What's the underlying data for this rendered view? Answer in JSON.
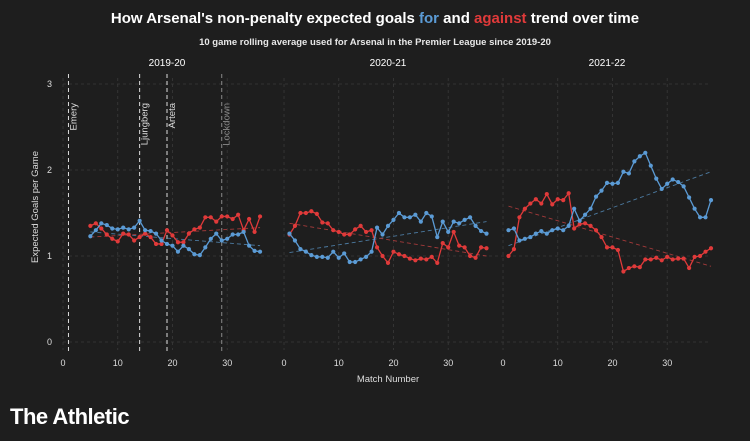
{
  "title": {
    "part1": "How Arsenal's non-penalty expected goals ",
    "for_word": "for",
    "middle": " and ",
    "against_word": "against",
    "part2": " trend over time"
  },
  "subtitle": "10 game rolling average used for Arsenal in the Premier League since 2019-20",
  "brand": "The Athletic",
  "colors": {
    "for": "#5b9bd5",
    "against": "#e03a3a",
    "background": "#1e1e1e",
    "grid": "#3a3a3a"
  },
  "chart_data": {
    "type": "line",
    "ylabel": "Expected Goals per Game",
    "xlabel": "Match Number",
    "ylim": [
      0,
      3
    ],
    "yticks": [
      "0",
      "1",
      "2",
      "3"
    ],
    "xticks": [
      "0",
      "10",
      "20",
      "30"
    ],
    "grid": true,
    "panels": [
      {
        "label": "2019-20",
        "xlim": [
          0,
          38
        ],
        "x_start": 5,
        "series": [
          {
            "name": "for",
            "values": [
              1.23,
              1.3,
              1.38,
              1.36,
              1.32,
              1.31,
              1.33,
              1.31,
              1.33,
              1.41,
              1.3,
              1.29,
              1.26,
              1.18,
              1.14,
              1.12,
              1.05,
              1.12,
              1.08,
              1.02,
              1.01,
              1.1,
              1.2,
              1.26,
              1.18,
              1.2,
              1.25,
              1.25,
              1.28,
              1.12,
              1.06,
              1.05
            ]
          },
          {
            "name": "against",
            "values": [
              1.35,
              1.38,
              1.32,
              1.25,
              1.2,
              1.17,
              1.26,
              1.25,
              1.18,
              1.22,
              1.26,
              1.22,
              1.14,
              1.14,
              1.3,
              1.24,
              1.16,
              1.16,
              1.26,
              1.31,
              1.33,
              1.45,
              1.45,
              1.4,
              1.46,
              1.46,
              1.43,
              1.48,
              1.3,
              1.43,
              1.28,
              1.46
            ]
          }
        ],
        "trend": {
          "for": [
            1.28,
            1.12
          ],
          "against": [
            1.22,
            1.33
          ]
        },
        "annotations": [
          {
            "label": "Emery",
            "x": 1,
            "style": "white"
          },
          {
            "label": "Ljungberg",
            "x": 14,
            "style": "white"
          },
          {
            "label": "Arteta",
            "x": 19,
            "style": "white"
          },
          {
            "label": "Lockdown",
            "x": 29,
            "style": "grey"
          }
        ]
      },
      {
        "label": "2020-21",
        "xlim": [
          0,
          38
        ],
        "x_start": 1,
        "series": [
          {
            "name": "for",
            "values": [
              1.26,
              1.18,
              1.08,
              1.05,
              1.01,
              0.99,
              0.99,
              0.98,
              1.05,
              0.98,
              1.03,
              0.93,
              0.93,
              0.96,
              0.99,
              1.05,
              1.33,
              1.25,
              1.35,
              1.42,
              1.5,
              1.45,
              1.45,
              1.48,
              1.4,
              1.5,
              1.46,
              1.22,
              1.4,
              1.28,
              1.4,
              1.38,
              1.42,
              1.45,
              1.35,
              1.29,
              1.26
            ]
          },
          {
            "name": "against",
            "values": [
              1.25,
              1.35,
              1.5,
              1.5,
              1.52,
              1.49,
              1.39,
              1.38,
              1.3,
              1.28,
              1.25,
              1.25,
              1.31,
              1.35,
              1.28,
              1.3,
              1.1,
              1.0,
              0.92,
              1.05,
              1.02,
              1.0,
              0.97,
              0.95,
              0.97,
              0.96,
              0.99,
              0.92,
              1.15,
              1.1,
              1.28,
              1.12,
              1.1,
              1.0,
              0.98,
              1.1,
              1.09
            ]
          }
        ],
        "trend": {
          "for": [
            1.04,
            1.4
          ],
          "against": [
            1.38,
            1.0
          ]
        }
      },
      {
        "label": "2021-22",
        "xlim": [
          0,
          38
        ],
        "x_start": 1,
        "series": [
          {
            "name": "for",
            "values": [
              1.3,
              1.32,
              1.18,
              1.2,
              1.22,
              1.26,
              1.29,
              1.26,
              1.3,
              1.32,
              1.3,
              1.35,
              1.55,
              1.41,
              1.48,
              1.55,
              1.69,
              1.76,
              1.85,
              1.84,
              1.85,
              1.98,
              1.96,
              2.1,
              2.16,
              2.2,
              2.05,
              1.9,
              1.78,
              1.84,
              1.89,
              1.86,
              1.81,
              1.68,
              1.55,
              1.45,
              1.45,
              1.65
            ]
          },
          {
            "name": "against",
            "values": [
              1.0,
              1.08,
              1.45,
              1.55,
              1.61,
              1.66,
              1.61,
              1.72,
              1.6,
              1.66,
              1.65,
              1.73,
              1.32,
              1.37,
              1.38,
              1.35,
              1.3,
              1.22,
              1.1,
              1.1,
              1.07,
              0.82,
              0.86,
              0.88,
              0.87,
              0.96,
              0.96,
              0.98,
              0.95,
              0.99,
              0.96,
              0.97,
              0.97,
              0.86,
              0.99,
              1.0,
              1.05,
              1.09
            ]
          }
        ],
        "trend": {
          "for": [
            1.12,
            1.98
          ],
          "against": [
            1.58,
            0.88
          ]
        }
      }
    ]
  }
}
